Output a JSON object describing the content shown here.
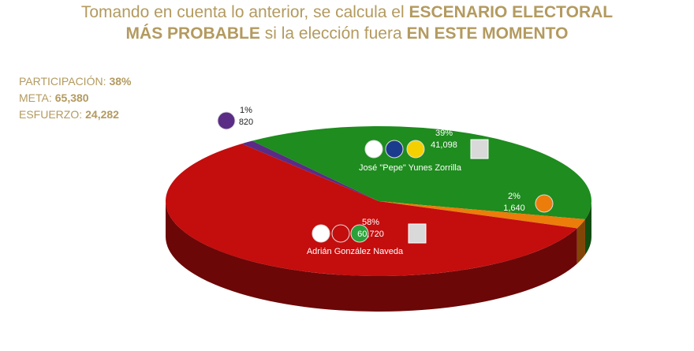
{
  "chart_data": {
    "type": "pie",
    "title": [
      "Tomando en cuenta lo anterior, se calcula el ",
      "ESCENARIO ELECTORAL",
      "MÁS PROBABLE",
      " si la elección fuera ",
      "EN ESTE MOMENTO"
    ],
    "stats": [
      {
        "label": "PARTICIPACIÓN:",
        "value": "38%"
      },
      {
        "label": "META:",
        "value": "65,380"
      },
      {
        "label": "ESFUERZO:",
        "value": "24,282"
      }
    ],
    "categories": [
      "Adrián González Naveda",
      "José \"Pepe\" Yunes Zorrilla",
      null,
      null
    ],
    "values": [
      58,
      39,
      2,
      1
    ],
    "value_labels": [
      "58%",
      "39%",
      "2%",
      "1%"
    ],
    "counts": [
      60720,
      41098,
      1640,
      820
    ],
    "count_labels": [
      "60,720",
      "41,098",
      "1,640",
      "820"
    ],
    "colors": [
      "#c40d0d",
      "#1e8c1e",
      "#ec7d0a",
      "#5b2c86"
    ]
  }
}
